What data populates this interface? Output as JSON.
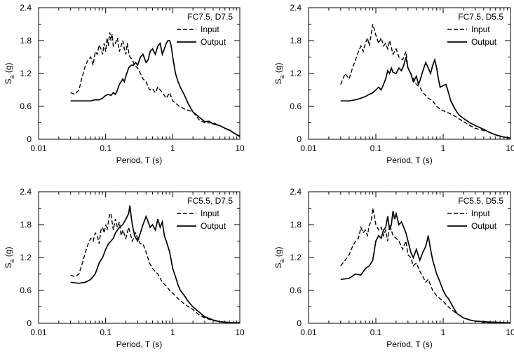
{
  "chart_data": [
    {
      "type": "line",
      "xscale": "log",
      "title": "FC7.5, D7.5",
      "xlabel": "Period, T (s)",
      "ylabel_main": "S",
      "ylabel_sub": "a",
      "ylabel_unit": " (g)",
      "xlim": [
        0.01,
        10
      ],
      "ylim": [
        0,
        2.4
      ],
      "xticks": [
        "0.01",
        "0.1",
        "1",
        "10"
      ],
      "yticks": [
        "0",
        "0.6",
        "1.2",
        "1.8",
        "2.4"
      ],
      "legend_position": "top-right",
      "series": [
        {
          "name": "Input",
          "style": "dashed",
          "x": [
            0.03,
            0.035,
            0.04,
            0.045,
            0.05,
            0.055,
            0.06,
            0.065,
            0.07,
            0.075,
            0.08,
            0.085,
            0.09,
            0.095,
            0.1,
            0.105,
            0.11,
            0.115,
            0.12,
            0.125,
            0.13,
            0.14,
            0.15,
            0.16,
            0.17,
            0.18,
            0.19,
            0.2,
            0.21,
            0.22,
            0.23,
            0.25,
            0.27,
            0.3,
            0.33,
            0.36,
            0.4,
            0.45,
            0.5,
            0.55,
            0.6,
            0.7,
            0.8,
            0.9,
            1.0,
            1.2,
            1.5,
            2.0,
            2.5,
            3.0,
            4.0,
            5.0,
            6.0,
            8.0,
            10.0
          ],
          "y": [
            0.85,
            0.82,
            0.9,
            1.15,
            1.35,
            1.45,
            1.5,
            1.35,
            1.6,
            1.55,
            1.72,
            1.65,
            1.55,
            1.75,
            1.6,
            1.85,
            1.7,
            1.95,
            1.8,
            1.92,
            1.7,
            1.75,
            1.85,
            1.6,
            1.7,
            1.8,
            1.65,
            1.55,
            1.75,
            1.6,
            1.5,
            1.45,
            1.35,
            1.3,
            1.2,
            1.1,
            1.05,
            0.9,
            0.92,
            0.85,
            0.95,
            0.85,
            0.75,
            0.85,
            0.7,
            0.62,
            0.55,
            0.5,
            0.35,
            0.3,
            0.3,
            0.25,
            0.2,
            0.12,
            0.06
          ]
        },
        {
          "name": "Output",
          "style": "solid",
          "x": [
            0.03,
            0.04,
            0.05,
            0.06,
            0.07,
            0.08,
            0.09,
            0.1,
            0.11,
            0.12,
            0.13,
            0.14,
            0.15,
            0.16,
            0.17,
            0.18,
            0.19,
            0.2,
            0.22,
            0.24,
            0.26,
            0.28,
            0.3,
            0.33,
            0.36,
            0.4,
            0.43,
            0.46,
            0.5,
            0.55,
            0.6,
            0.65,
            0.7,
            0.75,
            0.8,
            0.85,
            0.9,
            0.95,
            1.0,
            1.1,
            1.2,
            1.3,
            1.5,
            1.7,
            2.0,
            2.5,
            3.0,
            3.5,
            4.0,
            5.0,
            6.0,
            7.0,
            8.0,
            10.0
          ],
          "y": [
            0.7,
            0.7,
            0.7,
            0.7,
            0.72,
            0.72,
            0.75,
            0.8,
            0.82,
            0.8,
            0.85,
            0.82,
            0.9,
            1.0,
            1.05,
            1.1,
            1.05,
            1.15,
            1.3,
            1.35,
            1.35,
            1.4,
            1.35,
            1.5,
            1.55,
            1.4,
            1.45,
            1.6,
            1.65,
            1.55,
            1.7,
            1.75,
            1.55,
            1.65,
            1.75,
            1.8,
            1.8,
            1.7,
            1.5,
            1.2,
            1.05,
            0.95,
            0.8,
            0.65,
            0.5,
            0.4,
            0.32,
            0.33,
            0.28,
            0.25,
            0.2,
            0.17,
            0.12,
            0.05
          ]
        }
      ]
    },
    {
      "type": "line",
      "xscale": "log",
      "title": "FC7.5, D5.5",
      "xlabel": "Period, T (s)",
      "ylabel_main": "S",
      "ylabel_sub": "a",
      "ylabel_unit": " (g)",
      "xlim": [
        0.01,
        10
      ],
      "ylim": [
        0,
        2.4
      ],
      "xticks": [
        "0.01",
        "0.1",
        "1",
        "10"
      ],
      "yticks": [
        "0",
        "0.6",
        "1.2",
        "1.8",
        "2.4"
      ],
      "legend_position": "top-right",
      "series": [
        {
          "name": "Input",
          "style": "dashed",
          "x": [
            0.03,
            0.035,
            0.04,
            0.045,
            0.05,
            0.055,
            0.06,
            0.065,
            0.07,
            0.075,
            0.08,
            0.085,
            0.09,
            0.095,
            0.1,
            0.11,
            0.12,
            0.13,
            0.14,
            0.15,
            0.16,
            0.18,
            0.2,
            0.22,
            0.25,
            0.28,
            0.3,
            0.33,
            0.36,
            0.4,
            0.45,
            0.5,
            0.55,
            0.6,
            0.7,
            0.8,
            0.9,
            1.0,
            1.2,
            1.5,
            2.0,
            2.5,
            3.0,
            4.0,
            5.0,
            6.0,
            8.0,
            10.0
          ],
          "y": [
            1.0,
            1.2,
            1.1,
            1.3,
            1.45,
            1.6,
            1.7,
            1.6,
            1.75,
            1.85,
            1.7,
            1.9,
            2.1,
            2.0,
            1.9,
            1.75,
            1.85,
            1.7,
            1.75,
            1.65,
            1.8,
            1.55,
            1.65,
            1.5,
            1.45,
            1.6,
            1.3,
            1.2,
            1.1,
            1.0,
            0.95,
            0.85,
            0.8,
            0.75,
            0.7,
            0.6,
            0.55,
            0.52,
            0.48,
            0.42,
            0.32,
            0.25,
            0.2,
            0.16,
            0.12,
            0.08,
            0.04,
            0.02
          ]
        },
        {
          "name": "Output",
          "style": "solid",
          "x": [
            0.03,
            0.04,
            0.05,
            0.06,
            0.07,
            0.08,
            0.09,
            0.1,
            0.11,
            0.12,
            0.13,
            0.14,
            0.15,
            0.16,
            0.17,
            0.18,
            0.2,
            0.22,
            0.24,
            0.26,
            0.28,
            0.3,
            0.33,
            0.36,
            0.4,
            0.43,
            0.46,
            0.5,
            0.55,
            0.6,
            0.65,
            0.7,
            0.75,
            0.8,
            0.85,
            0.9,
            1.0,
            1.1,
            1.2,
            1.3,
            1.5,
            1.7,
            2.0,
            2.5,
            3.0,
            4.0,
            5.0,
            6.0,
            8.0,
            10.0
          ],
          "y": [
            0.7,
            0.7,
            0.72,
            0.75,
            0.78,
            0.82,
            0.85,
            0.9,
            0.95,
            0.9,
            1.0,
            1.1,
            1.25,
            1.2,
            1.3,
            1.22,
            1.2,
            1.3,
            1.25,
            1.35,
            1.5,
            1.3,
            1.2,
            1.05,
            1.15,
            1.0,
            1.1,
            1.25,
            1.4,
            1.3,
            1.2,
            1.35,
            1.45,
            1.3,
            1.1,
            0.95,
            0.98,
            1.0,
            0.85,
            0.7,
            0.55,
            0.45,
            0.38,
            0.3,
            0.25,
            0.18,
            0.12,
            0.08,
            0.04,
            0.02
          ]
        }
      ]
    },
    {
      "type": "line",
      "xscale": "log",
      "title": "FC5.5, D7.5",
      "xlabel": "Period, T (s)",
      "ylabel_main": "S",
      "ylabel_sub": "a",
      "ylabel_unit": " (g)",
      "xlim": [
        0.01,
        10
      ],
      "ylim": [
        0,
        2.4
      ],
      "xticks": [
        "0.01",
        "0.1",
        "1",
        "10"
      ],
      "yticks": [
        "0",
        "0.6",
        "1.2",
        "1.8",
        "2.4"
      ],
      "legend_position": "top-right",
      "series": [
        {
          "name": "Input",
          "style": "dashed",
          "x": [
            0.03,
            0.035,
            0.04,
            0.045,
            0.05,
            0.055,
            0.06,
            0.065,
            0.07,
            0.075,
            0.08,
            0.085,
            0.09,
            0.095,
            0.1,
            0.105,
            0.11,
            0.115,
            0.12,
            0.13,
            0.14,
            0.15,
            0.16,
            0.17,
            0.18,
            0.2,
            0.22,
            0.25,
            0.28,
            0.3,
            0.33,
            0.36,
            0.4,
            0.45,
            0.5,
            0.6,
            0.7,
            0.8,
            0.9,
            1.0,
            1.2,
            1.5,
            2.0,
            2.5,
            3.0,
            4.0,
            5.0,
            6.0,
            8.0,
            10.0
          ],
          "y": [
            0.88,
            0.85,
            0.9,
            1.1,
            1.3,
            1.45,
            1.55,
            1.5,
            1.65,
            1.6,
            1.45,
            1.7,
            1.75,
            1.65,
            1.8,
            1.7,
            1.85,
            2.0,
            2.0,
            1.7,
            1.9,
            1.75,
            1.85,
            1.6,
            1.7,
            1.55,
            1.75,
            1.5,
            1.65,
            1.55,
            1.45,
            1.45,
            1.3,
            1.1,
            1.0,
            0.9,
            0.75,
            0.68,
            0.6,
            0.55,
            0.45,
            0.35,
            0.25,
            0.15,
            0.1,
            0.05,
            0.03,
            0.02,
            0.01,
            0.01
          ]
        },
        {
          "name": "Output",
          "style": "solid",
          "x": [
            0.03,
            0.04,
            0.05,
            0.06,
            0.07,
            0.08,
            0.09,
            0.1,
            0.11,
            0.12,
            0.13,
            0.14,
            0.15,
            0.16,
            0.18,
            0.2,
            0.22,
            0.23,
            0.24,
            0.25,
            0.27,
            0.3,
            0.33,
            0.36,
            0.4,
            0.43,
            0.46,
            0.5,
            0.55,
            0.6,
            0.65,
            0.7,
            0.75,
            0.8,
            0.9,
            1.0,
            1.1,
            1.2,
            1.3,
            1.5,
            1.7,
            2.0,
            2.5,
            3.0,
            4.0,
            5.0,
            6.0,
            8.0,
            10.0
          ],
          "y": [
            0.75,
            0.73,
            0.75,
            0.8,
            0.9,
            1.1,
            1.2,
            1.35,
            1.45,
            1.5,
            1.55,
            1.65,
            1.7,
            1.75,
            1.8,
            1.9,
            2.0,
            2.15,
            1.95,
            1.8,
            1.6,
            1.5,
            1.65,
            1.8,
            1.95,
            1.85,
            1.75,
            1.8,
            1.7,
            1.9,
            1.75,
            1.85,
            1.6,
            1.5,
            1.3,
            1.0,
            0.85,
            0.7,
            0.6,
            0.5,
            0.4,
            0.3,
            0.2,
            0.12,
            0.06,
            0.03,
            0.02,
            0.01,
            0.01
          ]
        }
      ]
    },
    {
      "type": "line",
      "xscale": "log",
      "title": "FC5.5, D5.5",
      "xlabel": "Period, T (s)",
      "ylabel_main": "S",
      "ylabel_sub": "a",
      "ylabel_unit": " (g)",
      "xlim": [
        0.01,
        10
      ],
      "ylim": [
        0,
        2.4
      ],
      "xticks": [
        "0.01",
        "0.1",
        "1",
        "10"
      ],
      "yticks": [
        "0",
        "0.6",
        "1.2",
        "1.8",
        "2.4"
      ],
      "legend_position": "top-right",
      "series": [
        {
          "name": "Input",
          "style": "dashed",
          "x": [
            0.03,
            0.035,
            0.04,
            0.045,
            0.05,
            0.055,
            0.06,
            0.065,
            0.07,
            0.075,
            0.08,
            0.085,
            0.09,
            0.095,
            0.1,
            0.11,
            0.12,
            0.13,
            0.14,
            0.15,
            0.16,
            0.18,
            0.2,
            0.22,
            0.25,
            0.28,
            0.3,
            0.33,
            0.36,
            0.4,
            0.45,
            0.5,
            0.55,
            0.6,
            0.7,
            0.8,
            0.9,
            1.0,
            1.2,
            1.5,
            2.0,
            2.5,
            3.0,
            4.0,
            5.0,
            6.0,
            8.0,
            10.0
          ],
          "y": [
            1.05,
            1.15,
            1.25,
            1.4,
            1.5,
            1.55,
            1.75,
            1.65,
            1.7,
            1.6,
            1.8,
            1.85,
            2.1,
            1.95,
            1.8,
            1.7,
            1.75,
            1.6,
            1.7,
            1.5,
            1.8,
            1.6,
            1.55,
            1.5,
            1.35,
            1.5,
            1.25,
            1.2,
            1.05,
            1.1,
            0.95,
            0.85,
            0.75,
            0.8,
            0.6,
            0.5,
            0.45,
            0.4,
            0.3,
            0.2,
            0.1,
            0.06,
            0.04,
            0.02,
            0.01,
            0.01,
            0.01,
            0.01
          ]
        },
        {
          "name": "Output",
          "style": "solid",
          "x": [
            0.03,
            0.04,
            0.05,
            0.06,
            0.07,
            0.08,
            0.09,
            0.1,
            0.11,
            0.12,
            0.13,
            0.14,
            0.15,
            0.16,
            0.17,
            0.18,
            0.19,
            0.2,
            0.22,
            0.24,
            0.26,
            0.28,
            0.3,
            0.33,
            0.36,
            0.4,
            0.45,
            0.5,
            0.55,
            0.6,
            0.65,
            0.7,
            0.8,
            0.9,
            1.0,
            1.1,
            1.2,
            1.4,
            1.6,
            2.0,
            2.5,
            3.0,
            4.0,
            5.0,
            6.0,
            8.0,
            10.0
          ],
          "y": [
            0.8,
            0.82,
            0.9,
            0.88,
            1.0,
            1.05,
            1.15,
            1.5,
            1.6,
            1.55,
            1.7,
            1.75,
            1.95,
            1.7,
            1.8,
            2.05,
            1.9,
            2.0,
            1.8,
            1.85,
            1.75,
            1.65,
            1.5,
            1.3,
            1.2,
            1.35,
            1.15,
            1.3,
            1.4,
            1.6,
            1.35,
            1.15,
            0.9,
            0.75,
            0.6,
            0.5,
            0.45,
            0.3,
            0.18,
            0.1,
            0.06,
            0.04,
            0.03,
            0.02,
            0.02,
            0.01,
            0.01
          ]
        }
      ]
    }
  ]
}
